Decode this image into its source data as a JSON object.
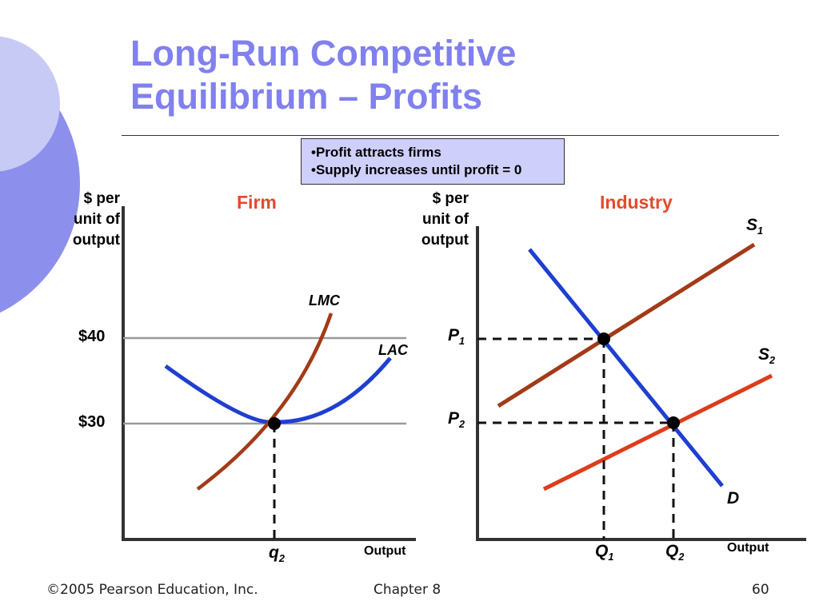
{
  "slide": {
    "title_line1": "Long-Run Competitive",
    "title_line2": "Equilibrium – Profits",
    "callout_line1": "•Profit attracts firms",
    "callout_line2": "•Supply increases until profit = 0",
    "footer_copyright": "©2005 Pearson Education, Inc.",
    "footer_chapter": "Chapter 8",
    "footer_page": "60"
  },
  "colors": {
    "title": "#8080ee",
    "panel_label": "#e24a2c",
    "lmc": "#a33a17",
    "lac": "#1f3fd0",
    "supply1": "#a33a17",
    "supply2": "#dd3d1a",
    "demand": "#1f3fd0",
    "price_line": "#999999",
    "decor_circle_1": "#c8caf6",
    "decor_circle_2": "#8c90ec"
  },
  "chart_data": [
    {
      "type": "line",
      "panel": "firm",
      "title": "Firm",
      "ylabel": [
        "$ per",
        "unit of",
        "output"
      ],
      "xlabel": "Output",
      "ytick_labels": [
        "$40",
        "$30"
      ],
      "price_levels": [
        40,
        30
      ],
      "xtick_label": "q",
      "xtick_sub": "2",
      "equilibrium": {
        "q": "q2",
        "price": 30
      },
      "series": [
        {
          "name": "LMC",
          "shape": "rising"
        },
        {
          "name": "LAC",
          "shape": "u-shaped"
        }
      ]
    },
    {
      "type": "line",
      "panel": "industry",
      "title": "Industry",
      "ylabel": [
        "$ per",
        "unit of",
        "output"
      ],
      "xlabel": "Output",
      "ytick_labels": [
        {
          "main": "P",
          "sub": "1"
        },
        {
          "main": "P",
          "sub": "2"
        }
      ],
      "xtick_labels": [
        {
          "main": "Q",
          "sub": "1"
        },
        {
          "main": "Q",
          "sub": "2"
        }
      ],
      "series": [
        {
          "name": "S",
          "sub": "1",
          "shape": "upward"
        },
        {
          "name": "S",
          "sub": "2",
          "shape": "upward"
        },
        {
          "name": "D",
          "shape": "downward"
        }
      ],
      "equilibria": [
        {
          "price": "P1",
          "quantity": "Q1"
        },
        {
          "price": "P2",
          "quantity": "Q2"
        }
      ]
    }
  ]
}
